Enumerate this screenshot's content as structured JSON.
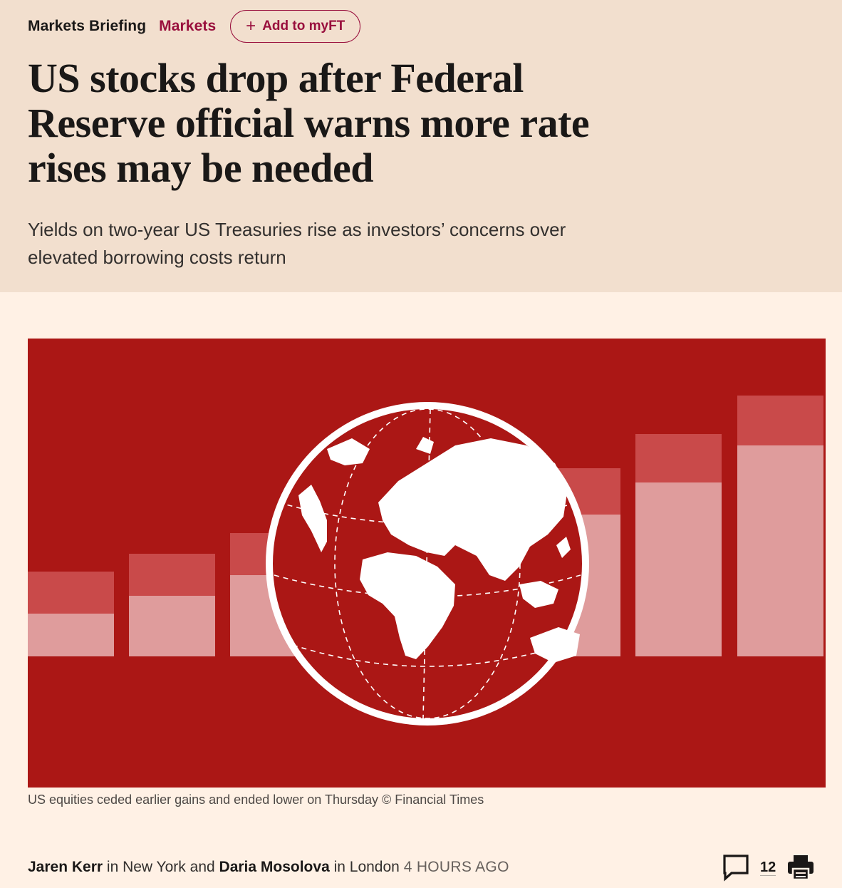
{
  "header": {
    "brand_label": "Markets Briefing",
    "section_label": "Markets",
    "add_button_label": "Add to myFT",
    "add_button_icon": "plus-icon"
  },
  "article": {
    "headline": "US stocks drop after Federal Reserve official warns more rate rises may be needed",
    "standfirst": "Yields on two-year US Treasuries rise as investors’ concerns over elevated borrowing costs return",
    "caption": "US equities ceded earlier gains and ended lower on Thursday © Financial Times"
  },
  "byline": {
    "author_1": "Jaren Kerr",
    "location_1": "in New York and",
    "author_2": "Daria Mosolova",
    "location_2": "in London",
    "timestamp": "4 HOURS AGO"
  },
  "actions": {
    "comment_icon": "comment-icon",
    "comment_count": "12",
    "print_icon": "print-icon"
  },
  "colors": {
    "page_background": "#FFF1E5",
    "header_background": "#F2DFCE",
    "accent": "#990F3D",
    "illustration_red": "#AB1715"
  }
}
